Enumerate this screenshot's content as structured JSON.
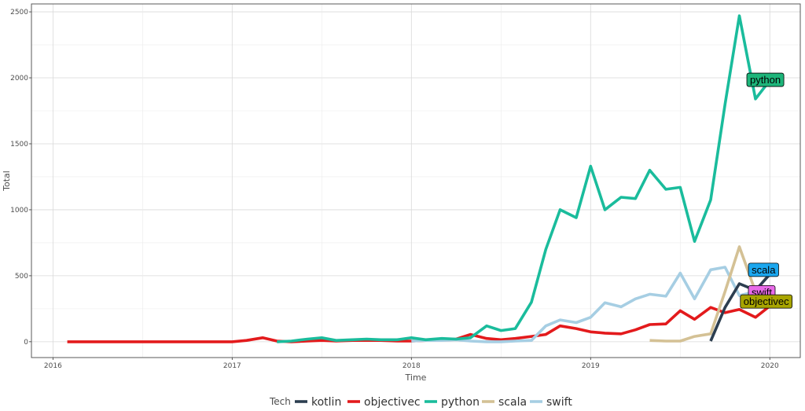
{
  "chart_data": {
    "type": "line",
    "xlabel": "Time",
    "ylabel": "Total",
    "xlim": [
      2015.88,
      2020.17
    ],
    "ylim": [
      -120,
      2560
    ],
    "x_ticks": [
      2016,
      2017,
      2018,
      2019,
      2020
    ],
    "x_tick_labels": [
      "2016",
      "2017",
      "2018",
      "2019",
      "2020"
    ],
    "y_ticks": [
      0,
      500,
      1000,
      1500,
      2000,
      2500
    ],
    "y_tick_labels": [
      "0",
      "500",
      "1000",
      "1500",
      "2000",
      "2500"
    ],
    "grid": true,
    "legend": {
      "title": "Tech",
      "position": "bottom",
      "items": [
        "kotlin",
        "objectivec",
        "python",
        "scala",
        "swift"
      ]
    },
    "series": [
      {
        "name": "kotlin",
        "color": "#2c3e50",
        "x": [
          2019.67,
          2019.75,
          2019.83,
          2019.92,
          2020.0
        ],
        "y": [
          5,
          260,
          440,
          390,
          510
        ]
      },
      {
        "name": "objectivec",
        "color": "#e31a1c",
        "x": [
          2016.08,
          2016.17,
          2016.25,
          2016.33,
          2016.42,
          2016.5,
          2016.58,
          2016.67,
          2016.75,
          2016.83,
          2016.92,
          2017.0,
          2017.08,
          2017.17,
          2017.25,
          2017.33,
          2017.42,
          2017.5,
          2017.58,
          2017.67,
          2017.75,
          2017.83,
          2017.92,
          2018.0,
          2018.08,
          2018.17,
          2018.25,
          2018.33,
          2018.42,
          2018.5,
          2018.58,
          2018.67,
          2018.75,
          2018.83,
          2018.92,
          2019.0,
          2019.08,
          2019.17,
          2019.25,
          2019.33,
          2019.42,
          2019.5,
          2019.58,
          2019.67,
          2019.75,
          2019.83,
          2019.92,
          2020.0
        ],
        "y": [
          0,
          0,
          0,
          0,
          0,
          0,
          0,
          0,
          0,
          0,
          0,
          0,
          10,
          30,
          5,
          0,
          5,
          10,
          5,
          10,
          10,
          10,
          5,
          5,
          10,
          15,
          20,
          55,
          25,
          15,
          25,
          40,
          55,
          120,
          100,
          75,
          65,
          60,
          90,
          130,
          135,
          235,
          170,
          260,
          220,
          245,
          185,
          270
        ]
      },
      {
        "name": "python",
        "color": "#1abc9c",
        "x": [
          2017.25,
          2017.33,
          2017.42,
          2017.5,
          2017.58,
          2017.67,
          2017.75,
          2017.83,
          2017.92,
          2018.0,
          2018.08,
          2018.17,
          2018.25,
          2018.33,
          2018.42,
          2018.5,
          2018.58,
          2018.67,
          2018.75,
          2018.83,
          2018.92,
          2019.0,
          2019.08,
          2019.17,
          2019.25,
          2019.33,
          2019.42,
          2019.5,
          2019.58,
          2019.67,
          2019.75,
          2019.83,
          2019.92,
          2020.0
        ],
        "y": [
          0,
          5,
          20,
          30,
          10,
          15,
          20,
          15,
          15,
          30,
          15,
          25,
          20,
          30,
          120,
          85,
          100,
          300,
          700,
          1000,
          940,
          1330,
          1000,
          1095,
          1085,
          1300,
          1155,
          1170,
          760,
          1075,
          1800,
          2470,
          1840,
          1980
        ]
      },
      {
        "name": "scala",
        "color": "#d4c195",
        "x": [
          2019.33,
          2019.42,
          2019.5,
          2019.58,
          2019.67,
          2019.75,
          2019.83,
          2019.92,
          2020.0
        ],
        "y": [
          10,
          5,
          5,
          40,
          60,
          380,
          720,
          380,
          520
        ]
      },
      {
        "name": "swift",
        "color": "#a6cee3",
        "x": [
          2018.0,
          2018.08,
          2018.17,
          2018.25,
          2018.33,
          2018.42,
          2018.5,
          2018.58,
          2018.67,
          2018.75,
          2018.83,
          2018.92,
          2019.0,
          2019.08,
          2019.17,
          2019.25,
          2019.33,
          2019.42,
          2019.5,
          2019.58,
          2019.67,
          2019.75,
          2019.83,
          2019.92
        ],
        "y": [
          5,
          10,
          10,
          15,
          5,
          0,
          0,
          5,
          10,
          120,
          165,
          145,
          185,
          295,
          265,
          325,
          360,
          345,
          520,
          325,
          545,
          565,
          350,
          380
        ]
      }
    ],
    "annotations": [
      {
        "series": "python",
        "text": "python",
        "x": 2019.975,
        "y": 1985,
        "fill": "#1db57a"
      },
      {
        "series": "scala",
        "text": "scala",
        "x": 2019.965,
        "y": 545,
        "fill": "#1ba7ef"
      },
      {
        "series": "swift",
        "text": "swift",
        "x": 2019.955,
        "y": 375,
        "fill": "#e86be8"
      },
      {
        "series": "objectivec",
        "text": "objectivec",
        "x": 2019.98,
        "y": 305,
        "fill": "#a8a500"
      }
    ]
  }
}
